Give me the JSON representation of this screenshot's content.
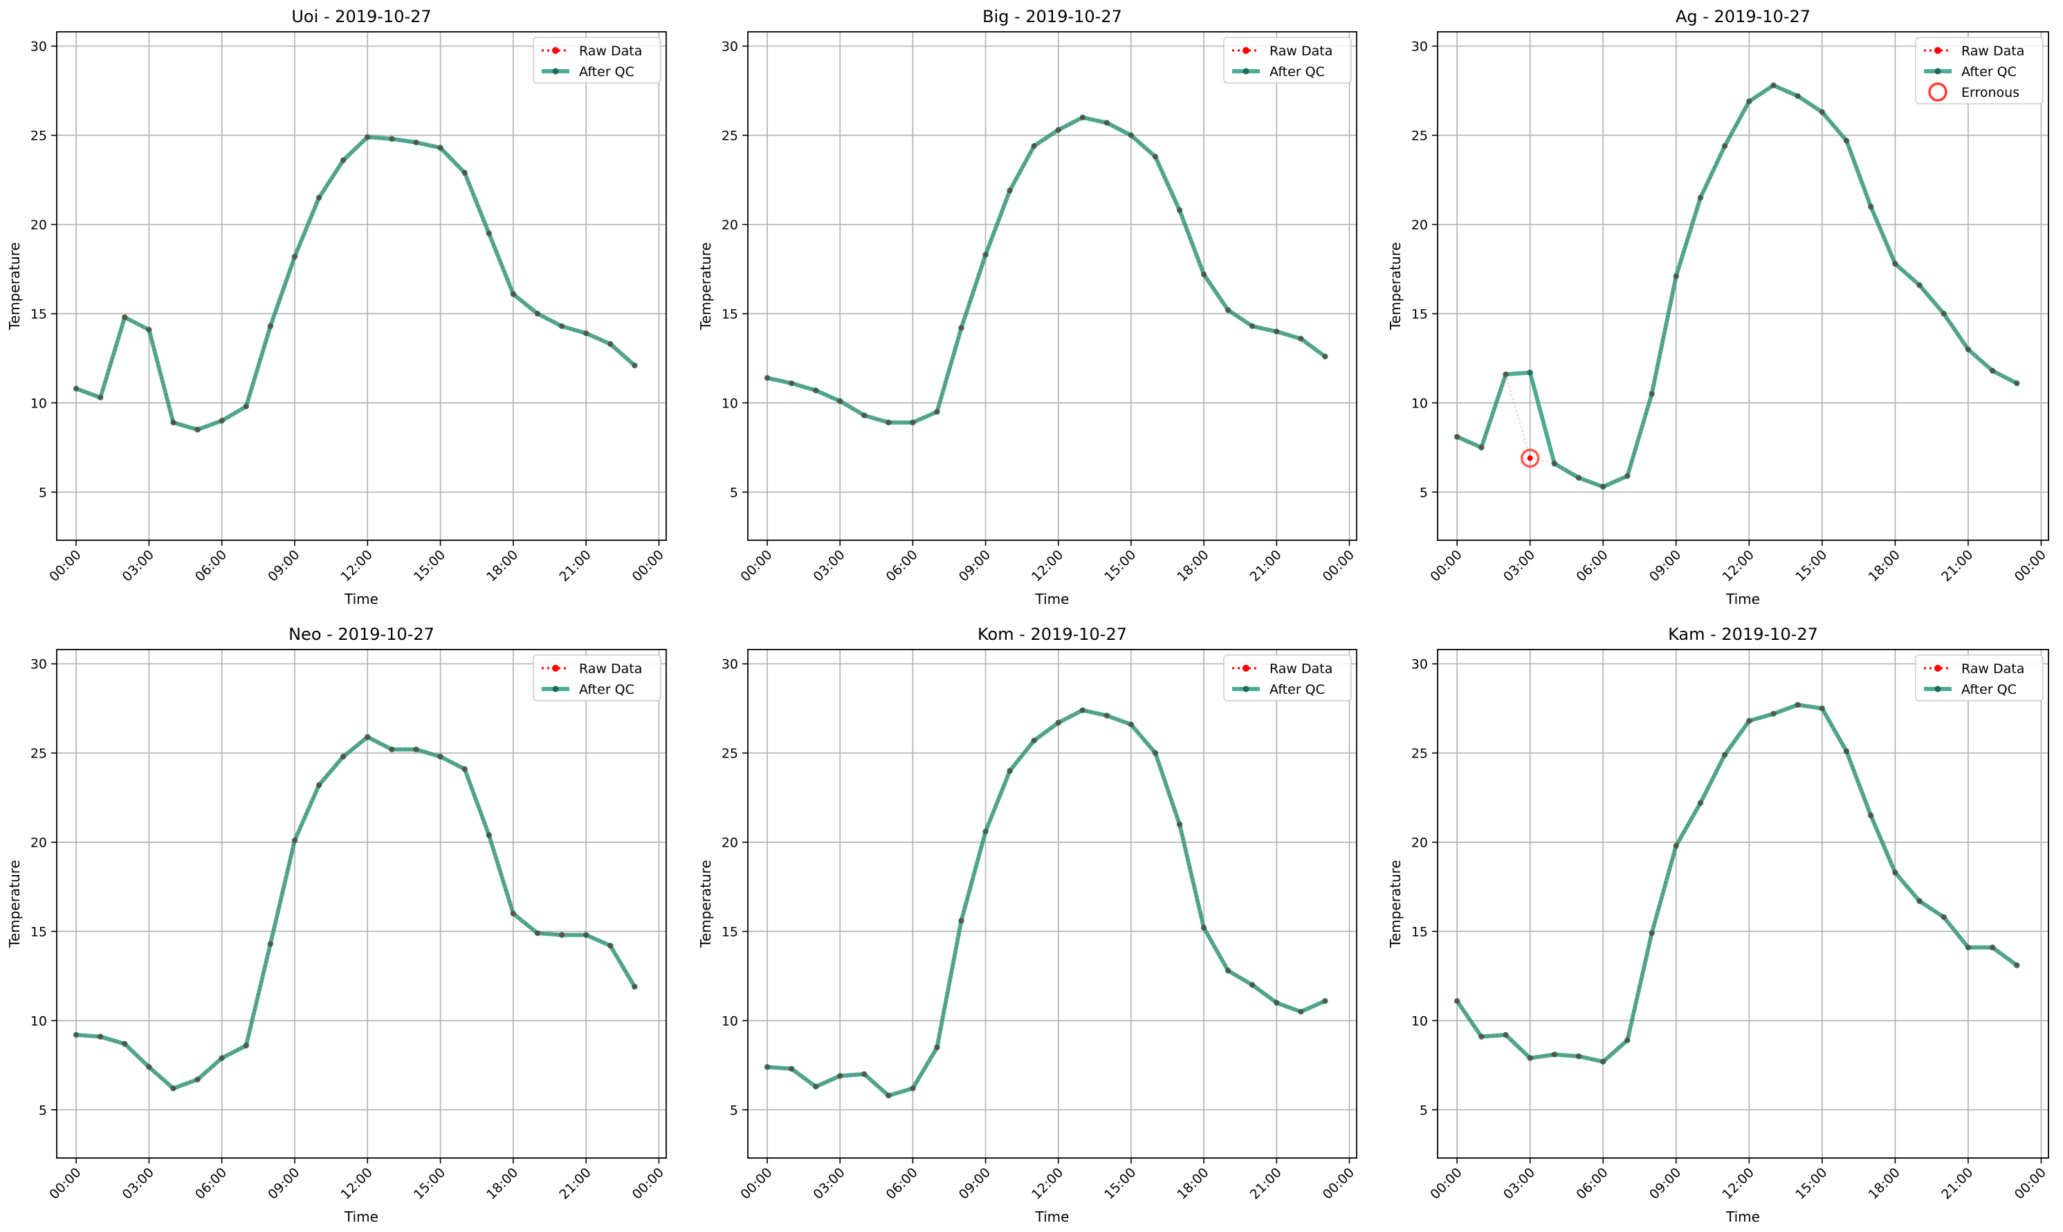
{
  "figure": {
    "xlabel": "Time",
    "ylabel": "Temperature",
    "ylim": [
      2.3,
      30.8
    ],
    "xlim": [
      -0.8,
      24.3
    ],
    "yticks": [
      5,
      10,
      15,
      20,
      25,
      30
    ],
    "xticks": [
      0,
      3,
      6,
      9,
      12,
      15,
      18,
      21,
      24
    ],
    "xtick_labels": [
      "00:00",
      "03:00",
      "06:00",
      "09:00",
      "12:00",
      "15:00",
      "18:00",
      "21:00",
      "00:00"
    ],
    "grid": true,
    "legend": {
      "placement": "top-right",
      "raw_label": "Raw Data",
      "qc_label": "After QC",
      "err_label": "Erronous"
    },
    "colors": {
      "raw": "#ff0000",
      "qc": "#2e9c7f",
      "qc_marker": "#1e6b57",
      "err": "#ff3b30"
    }
  },
  "chart_data": [
    {
      "type": "line",
      "title": "Uoi - 2019-10-27",
      "x": [
        0,
        1,
        2,
        3,
        4,
        5,
        6,
        7,
        8,
        9,
        10,
        11,
        12,
        13,
        14,
        15,
        16,
        17,
        18,
        19,
        20,
        21,
        22,
        23
      ],
      "series": [
        {
          "name": "Raw Data",
          "values": [
            10.8,
            10.3,
            14.8,
            14.1,
            8.9,
            8.5,
            9.0,
            9.8,
            14.3,
            18.2,
            21.5,
            23.6,
            24.9,
            24.8,
            24.6,
            24.3,
            22.9,
            19.5,
            16.1,
            15.0,
            14.3,
            13.9,
            13.3,
            12.1
          ]
        },
        {
          "name": "After QC",
          "values": [
            10.8,
            10.3,
            14.8,
            14.1,
            8.9,
            8.5,
            9.0,
            9.8,
            14.3,
            18.2,
            21.5,
            23.6,
            24.9,
            24.8,
            24.6,
            24.3,
            22.9,
            19.5,
            16.1,
            15.0,
            14.3,
            13.9,
            13.3,
            12.1
          ]
        }
      ],
      "erroneous": []
    },
    {
      "type": "line",
      "title": "Big - 2019-10-27",
      "x": [
        0,
        1,
        2,
        3,
        4,
        5,
        6,
        7,
        8,
        9,
        10,
        11,
        12,
        13,
        14,
        15,
        16,
        17,
        18,
        19,
        20,
        21,
        22,
        23
      ],
      "series": [
        {
          "name": "Raw Data",
          "values": [
            11.4,
            11.1,
            10.7,
            10.1,
            9.3,
            8.9,
            8.9,
            9.5,
            14.2,
            18.3,
            21.9,
            24.4,
            25.3,
            26.0,
            25.7,
            25.0,
            23.8,
            20.8,
            17.2,
            15.2,
            14.3,
            14.0,
            13.6,
            12.6
          ]
        },
        {
          "name": "After QC",
          "values": [
            11.4,
            11.1,
            10.7,
            10.1,
            9.3,
            8.9,
            8.9,
            9.5,
            14.2,
            18.3,
            21.9,
            24.4,
            25.3,
            26.0,
            25.7,
            25.0,
            23.8,
            20.8,
            17.2,
            15.2,
            14.3,
            14.0,
            13.6,
            12.6
          ]
        }
      ],
      "erroneous": []
    },
    {
      "type": "line",
      "title": "Ag - 2019-10-27",
      "x": [
        0,
        1,
        2,
        3,
        4,
        5,
        6,
        7,
        8,
        9,
        10,
        11,
        12,
        13,
        14,
        15,
        16,
        17,
        18,
        19,
        20,
        21,
        22,
        23
      ],
      "series": [
        {
          "name": "Raw Data",
          "values": [
            8.1,
            7.5,
            11.6,
            6.9,
            6.6,
            5.8,
            5.3,
            5.9,
            10.5,
            17.1,
            21.5,
            24.4,
            26.9,
            27.8,
            27.2,
            26.3,
            24.7,
            21.0,
            17.8,
            16.6,
            15.0,
            13.0,
            11.8,
            11.1
          ]
        },
        {
          "name": "After QC",
          "values": [
            8.1,
            7.5,
            11.6,
            11.7,
            6.6,
            5.8,
            5.3,
            5.9,
            10.5,
            17.1,
            21.5,
            24.4,
            26.9,
            27.8,
            27.2,
            26.3,
            24.7,
            21.0,
            17.8,
            16.6,
            15.0,
            13.0,
            11.8,
            11.1
          ]
        }
      ],
      "erroneous": [
        {
          "x": 3,
          "y": 6.9
        }
      ]
    },
    {
      "type": "line",
      "title": "Neo - 2019-10-27",
      "x": [
        0,
        1,
        2,
        3,
        4,
        5,
        6,
        7,
        8,
        9,
        10,
        11,
        12,
        13,
        14,
        15,
        16,
        17,
        18,
        19,
        20,
        21,
        22,
        23
      ],
      "series": [
        {
          "name": "Raw Data",
          "values": [
            9.2,
            9.1,
            8.7,
            7.4,
            6.2,
            6.7,
            7.9,
            8.6,
            14.3,
            20.1,
            23.2,
            24.8,
            25.9,
            25.2,
            25.2,
            24.8,
            24.1,
            20.4,
            16.0,
            14.9,
            14.8,
            14.8,
            14.2,
            11.9
          ]
        },
        {
          "name": "After QC",
          "values": [
            9.2,
            9.1,
            8.7,
            7.4,
            6.2,
            6.7,
            7.9,
            8.6,
            14.3,
            20.1,
            23.2,
            24.8,
            25.9,
            25.2,
            25.2,
            24.8,
            24.1,
            20.4,
            16.0,
            14.9,
            14.8,
            14.8,
            14.2,
            11.9
          ]
        }
      ],
      "erroneous": []
    },
    {
      "type": "line",
      "title": "Kom - 2019-10-27",
      "x": [
        0,
        1,
        2,
        3,
        4,
        5,
        6,
        7,
        8,
        9,
        10,
        11,
        12,
        13,
        14,
        15,
        16,
        17,
        18,
        19,
        20,
        21,
        22,
        23
      ],
      "series": [
        {
          "name": "Raw Data",
          "values": [
            7.4,
            7.3,
            6.3,
            6.9,
            7.0,
            5.8,
            6.2,
            8.5,
            15.6,
            20.6,
            24.0,
            25.7,
            26.7,
            27.4,
            27.1,
            26.6,
            25.0,
            21.0,
            15.2,
            12.8,
            12.0,
            11.0,
            10.5,
            11.1
          ]
        },
        {
          "name": "After QC",
          "values": [
            7.4,
            7.3,
            6.3,
            6.9,
            7.0,
            5.8,
            6.2,
            8.5,
            15.6,
            20.6,
            24.0,
            25.7,
            26.7,
            27.4,
            27.1,
            26.6,
            25.0,
            21.0,
            15.2,
            12.8,
            12.0,
            11.0,
            10.5,
            11.1
          ]
        }
      ],
      "erroneous": []
    },
    {
      "type": "line",
      "title": "Kam - 2019-10-27",
      "x": [
        0,
        1,
        2,
        3,
        4,
        5,
        6,
        7,
        8,
        9,
        10,
        11,
        12,
        13,
        14,
        15,
        16,
        17,
        18,
        19,
        20,
        21,
        22,
        23
      ],
      "series": [
        {
          "name": "Raw Data",
          "values": [
            11.1,
            9.1,
            9.2,
            7.9,
            8.1,
            8.0,
            7.7,
            8.9,
            14.9,
            19.8,
            22.2,
            24.9,
            26.8,
            27.2,
            27.7,
            27.5,
            25.1,
            21.5,
            18.3,
            16.7,
            15.8,
            14.1,
            14.1,
            13.1
          ]
        },
        {
          "name": "After QC",
          "values": [
            11.1,
            9.1,
            9.2,
            7.9,
            8.1,
            8.0,
            7.7,
            8.9,
            14.9,
            19.8,
            22.2,
            24.9,
            26.8,
            27.2,
            27.7,
            27.5,
            25.1,
            21.5,
            18.3,
            16.7,
            15.8,
            14.1,
            14.1,
            13.1
          ]
        }
      ],
      "erroneous": []
    }
  ]
}
